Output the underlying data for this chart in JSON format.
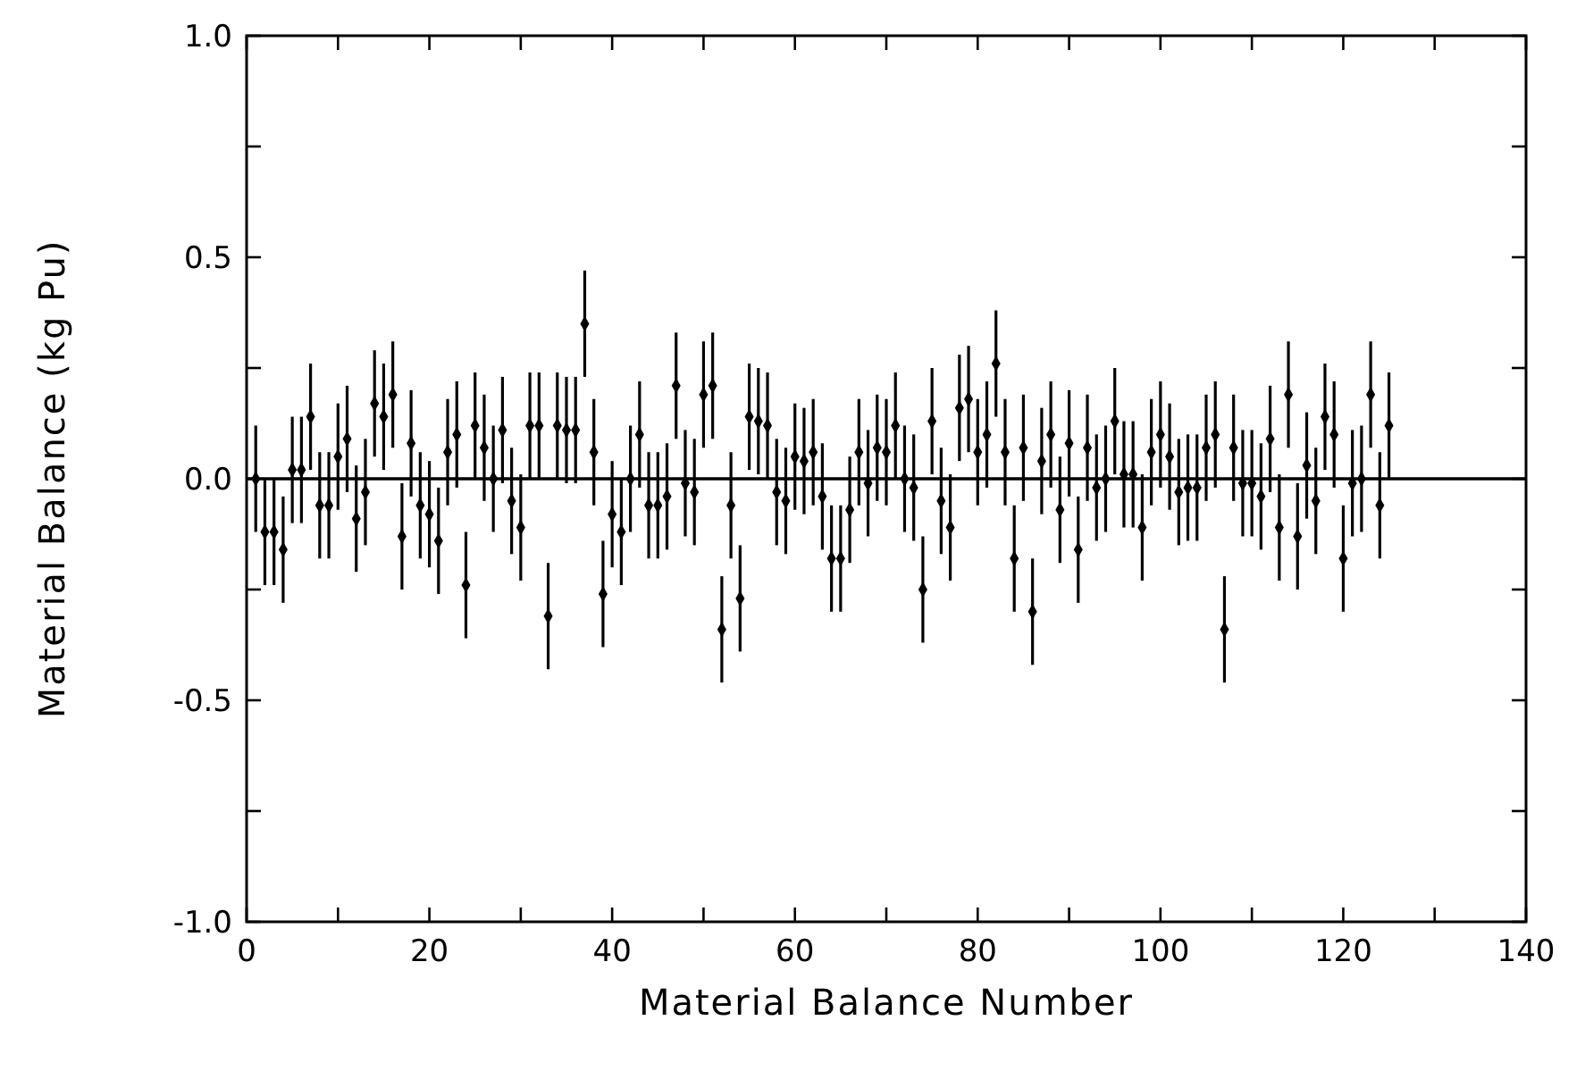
{
  "chart_data": {
    "type": "scatter",
    "xlabel": "Material Balance Number",
    "ylabel": "Material Balance (kg Pu)",
    "x": [
      1,
      2,
      3,
      4,
      5,
      6,
      7,
      8,
      9,
      10,
      11,
      12,
      13,
      14,
      15,
      16,
      17,
      18,
      19,
      20,
      21,
      22,
      23,
      24,
      25,
      26,
      27,
      28,
      29,
      30,
      31,
      32,
      33,
      34,
      35,
      36,
      37,
      38,
      39,
      40,
      41,
      42,
      43,
      44,
      45,
      46,
      47,
      48,
      49,
      50,
      51,
      52,
      53,
      54,
      55,
      56,
      57,
      58,
      59,
      60,
      61,
      62,
      63,
      64,
      65,
      66,
      67,
      68,
      69,
      70,
      71,
      72,
      73,
      74,
      75,
      76,
      77,
      78,
      79,
      80,
      81,
      82,
      83,
      84,
      85,
      86,
      87,
      88,
      89,
      90,
      91,
      92,
      93,
      94,
      95,
      96,
      97,
      98,
      99,
      100,
      101,
      102,
      103,
      104,
      105,
      106,
      107,
      108,
      109,
      110,
      111,
      112,
      113,
      114,
      115,
      116,
      117,
      118,
      119,
      120,
      121,
      122,
      123,
      124,
      125
    ],
    "values": [
      0,
      -0.12,
      -0.12,
      -0.16,
      0.02,
      0.02,
      0.14,
      -0.06,
      -0.06,
      0.05,
      0.09,
      -0.09,
      -0.03,
      0.17,
      0.14,
      0.19,
      -0.13,
      0.08,
      -0.06,
      -0.08,
      -0.14,
      0.06,
      0.1,
      -0.24,
      0.12,
      0.07,
      0,
      0.11,
      -0.05,
      -0.11,
      0.12,
      0.12,
      -0.31,
      0.12,
      0.11,
      0.11,
      0.35,
      0.06,
      -0.26,
      -0.08,
      -0.12,
      0,
      0.1,
      -0.06,
      -0.06,
      -0.04,
      0.21,
      -0.01,
      -0.03,
      0.19,
      0.21,
      -0.34,
      -0.06,
      -0.27,
      0.14,
      0.13,
      0.12,
      -0.03,
      -0.05,
      0.05,
      0.04,
      0.06,
      -0.04,
      -0.18,
      -0.18,
      -0.07,
      0.06,
      -0.01,
      0.07,
      0.06,
      0.12,
      0,
      -0.02,
      -0.25,
      0.13,
      -0.05,
      -0.11,
      0.16,
      0.18,
      0.06,
      0.1,
      0.26,
      0.06,
      -0.18,
      0.07,
      -0.3,
      0.04,
      0.1,
      -0.07,
      0.08,
      -0.16,
      0.07,
      -0.02,
      0,
      0.13,
      0.01,
      0.01,
      -0.11,
      0.06,
      0.1,
      0.05,
      -0.03,
      -0.02,
      -0.02,
      0.07,
      0.1,
      -0.34,
      0.07,
      -0.01,
      -0.01,
      -0.04,
      0.09,
      -0.11,
      0.19,
      -0.13,
      0.03,
      -0.05,
      0.14,
      0.1,
      -0.18,
      -0.01,
      0,
      0.19,
      -0.06,
      0.12
    ],
    "errors": [
      0.12,
      0.12,
      0.12,
      0.12,
      0.12,
      0.12,
      0.12,
      0.12,
      0.12,
      0.12,
      0.12,
      0.12,
      0.12,
      0.12,
      0.12,
      0.12,
      0.12,
      0.12,
      0.12,
      0.12,
      0.12,
      0.12,
      0.12,
      0.12,
      0.12,
      0.12,
      0.12,
      0.12,
      0.12,
      0.12,
      0.12,
      0.12,
      0.12,
      0.12,
      0.12,
      0.12,
      0.12,
      0.12,
      0.12,
      0.12,
      0.12,
      0.12,
      0.12,
      0.12,
      0.12,
      0.12,
      0.12,
      0.12,
      0.12,
      0.12,
      0.12,
      0.12,
      0.12,
      0.12,
      0.12,
      0.12,
      0.12,
      0.12,
      0.12,
      0.12,
      0.12,
      0.12,
      0.12,
      0.12,
      0.12,
      0.12,
      0.12,
      0.12,
      0.12,
      0.12,
      0.12,
      0.12,
      0.12,
      0.12,
      0.12,
      0.12,
      0.12,
      0.12,
      0.12,
      0.12,
      0.12,
      0.12,
      0.12,
      0.12,
      0.12,
      0.12,
      0.12,
      0.12,
      0.12,
      0.12,
      0.12,
      0.12,
      0.12,
      0.12,
      0.12,
      0.12,
      0.12,
      0.12,
      0.12,
      0.12,
      0.12,
      0.12,
      0.12,
      0.12,
      0.12,
      0.12,
      0.12,
      0.12,
      0.12,
      0.12,
      0.12,
      0.12,
      0.12,
      0.12,
      0.12,
      0.12,
      0.12,
      0.12,
      0.12,
      0.12,
      0.12,
      0.12,
      0.12,
      0.12,
      0.12
    ],
    "color": "#000000",
    "marker": "diamond",
    "xlim": [
      0,
      140
    ],
    "xticks": [
      0,
      {
        "value": 10,
        "label": null
      },
      20,
      {
        "value": 30,
        "label": null
      },
      40,
      {
        "value": 50,
        "label": null
      },
      60,
      {
        "value": 70,
        "label": null
      },
      80,
      {
        "value": 90,
        "label": null
      },
      100,
      {
        "value": 110,
        "label": null
      },
      120,
      {
        "value": 130,
        "label": null
      },
      140
    ],
    "ylim": [
      -1,
      1
    ],
    "yticks": [
      {
        "value": -1,
        "label": "-1.0"
      },
      {
        "value": -0.75,
        "label": null
      },
      {
        "value": -0.5,
        "label": "-0.5"
      },
      {
        "value": -0.25,
        "label": null
      },
      {
        "value": 0,
        "label": "0.0"
      },
      {
        "value": 0.25,
        "label": null
      },
      {
        "value": 0.5,
        "label": "0.5"
      },
      {
        "value": 0.75,
        "label": null
      },
      {
        "value": 1,
        "label": "1.0"
      }
    ],
    "ref_lines": [
      {
        "axis": "y",
        "value": 0,
        "color": "#000000"
      }
    ],
    "grid": false
  }
}
